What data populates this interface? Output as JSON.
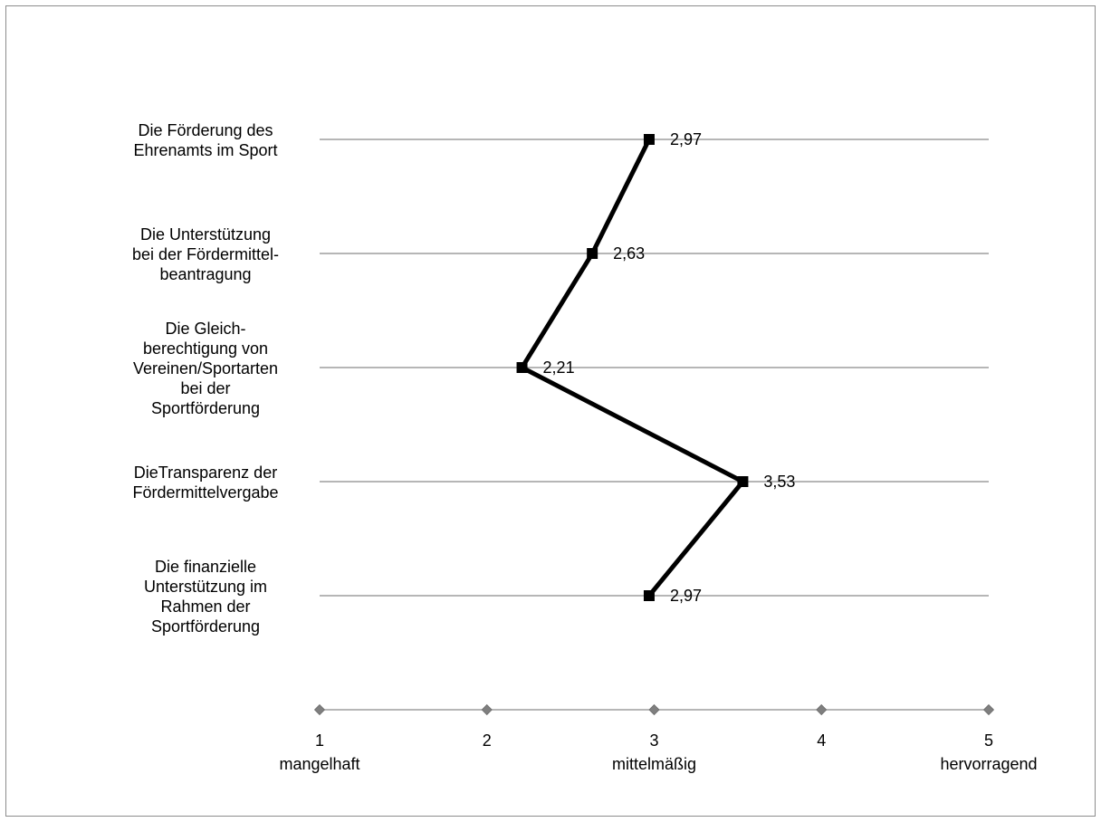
{
  "chart_data": {
    "type": "line",
    "orientation": "horizontal",
    "categories": [
      "Die Förderung des Ehrenamts im Sport",
      "Die Unterstützung bei der Fördermittel-beantragung",
      "Die Gleich-berechtigung von Vereinen/Sportarten bei der Sportförderung",
      "DieTransparenz der Fördermittelvergabe",
      "Die finanzielle Unterstützung im Rahmen der Sportförderung"
    ],
    "category_lines": [
      [
        "Die Förderung des",
        "Ehrenamts im Sport"
      ],
      [
        "Die Unterstützung",
        "bei der Fördermittel-",
        "beantragung"
      ],
      [
        "Die Gleich-",
        "berechtigung von",
        "Vereinen/Sportarten",
        "bei der",
        "Sportförderung"
      ],
      [
        "DieTransparenz der",
        "Fördermittelvergabe"
      ],
      [
        "Die finanzielle",
        "Unterstützung im",
        "Rahmen der",
        "Sportförderung"
      ]
    ],
    "values": [
      2.97,
      2.63,
      2.21,
      3.53,
      2.97
    ],
    "data_labels": [
      "2,97",
      "2,63",
      "2,21",
      "3,53",
      "2,97"
    ],
    "xlim": [
      1,
      5
    ],
    "x_ticks": [
      {
        "value": 1,
        "label": "1",
        "sublabel": "mangelhaft"
      },
      {
        "value": 2,
        "label": "2",
        "sublabel": ""
      },
      {
        "value": 3,
        "label": "3",
        "sublabel": "mittelmäßig"
      },
      {
        "value": 4,
        "label": "4",
        "sublabel": ""
      },
      {
        "value": 5,
        "label": "5",
        "sublabel": "hervorragend"
      }
    ],
    "grid": true,
    "colors": {
      "series": "#000000",
      "grid": "#8a8a8a",
      "axis_marker": "#7f7f7f"
    }
  }
}
